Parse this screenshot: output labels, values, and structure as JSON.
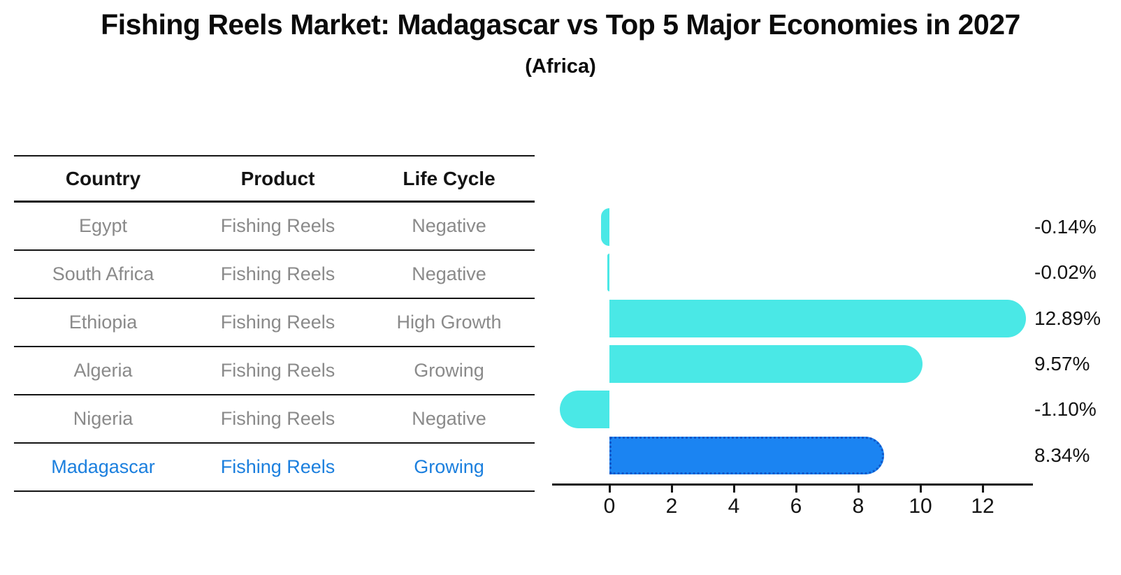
{
  "chart_data": {
    "type": "bar",
    "orientation": "horizontal",
    "title": "Fishing Reels Market: Madagascar vs Top 5 Major Economies in 2027",
    "subtitle": "(Africa)",
    "categories": [
      "Egypt",
      "South Africa",
      "Ethiopia",
      "Algeria",
      "Nigeria",
      "Madagascar"
    ],
    "values": [
      -0.14,
      -0.02,
      12.89,
      9.57,
      -1.1,
      8.34
    ],
    "value_labels": [
      "-0.14%",
      "-0.02%",
      "12.89%",
      "9.57%",
      "-1.10%",
      "8.34%"
    ],
    "x_ticks": [
      0,
      2,
      4,
      6,
      8,
      10,
      12
    ],
    "xlim": [
      -1.9,
      13.6
    ],
    "xlabel": "",
    "ylabel": "",
    "grid": false,
    "legend": "none",
    "bar_color": "#4ae8e6",
    "highlight_index": 5,
    "highlight_bar_color": "#1b84f2",
    "highlight_border_color": "#1057c8",
    "highlight_border_style": "dotted",
    "rounded_bar_ends": true
  },
  "table": {
    "headers": [
      "Country",
      "Product",
      "Life Cycle"
    ],
    "rows": [
      {
        "country": "Egypt",
        "product": "Fishing Reels",
        "life_cycle": "Negative",
        "highlight": false
      },
      {
        "country": "South Africa",
        "product": "Fishing Reels",
        "life_cycle": "Negative",
        "highlight": false
      },
      {
        "country": "Ethiopia",
        "product": "Fishing Reels",
        "life_cycle": "High Growth",
        "highlight": false
      },
      {
        "country": "Algeria",
        "product": "Fishing Reels",
        "life_cycle": "Growing",
        "highlight": false
      },
      {
        "country": "Nigeria",
        "product": "Fishing Reels",
        "life_cycle": "Negative",
        "highlight": false
      },
      {
        "country": "Madagascar",
        "product": "Fishing Reels",
        "life_cycle": "Growing",
        "highlight": true
      }
    ]
  },
  "colors": {
    "text_primary": "#141414",
    "text_muted": "#8a8a8a",
    "highlight_text": "#1b7fde",
    "axis": "#141414",
    "background": "#ffffff"
  }
}
